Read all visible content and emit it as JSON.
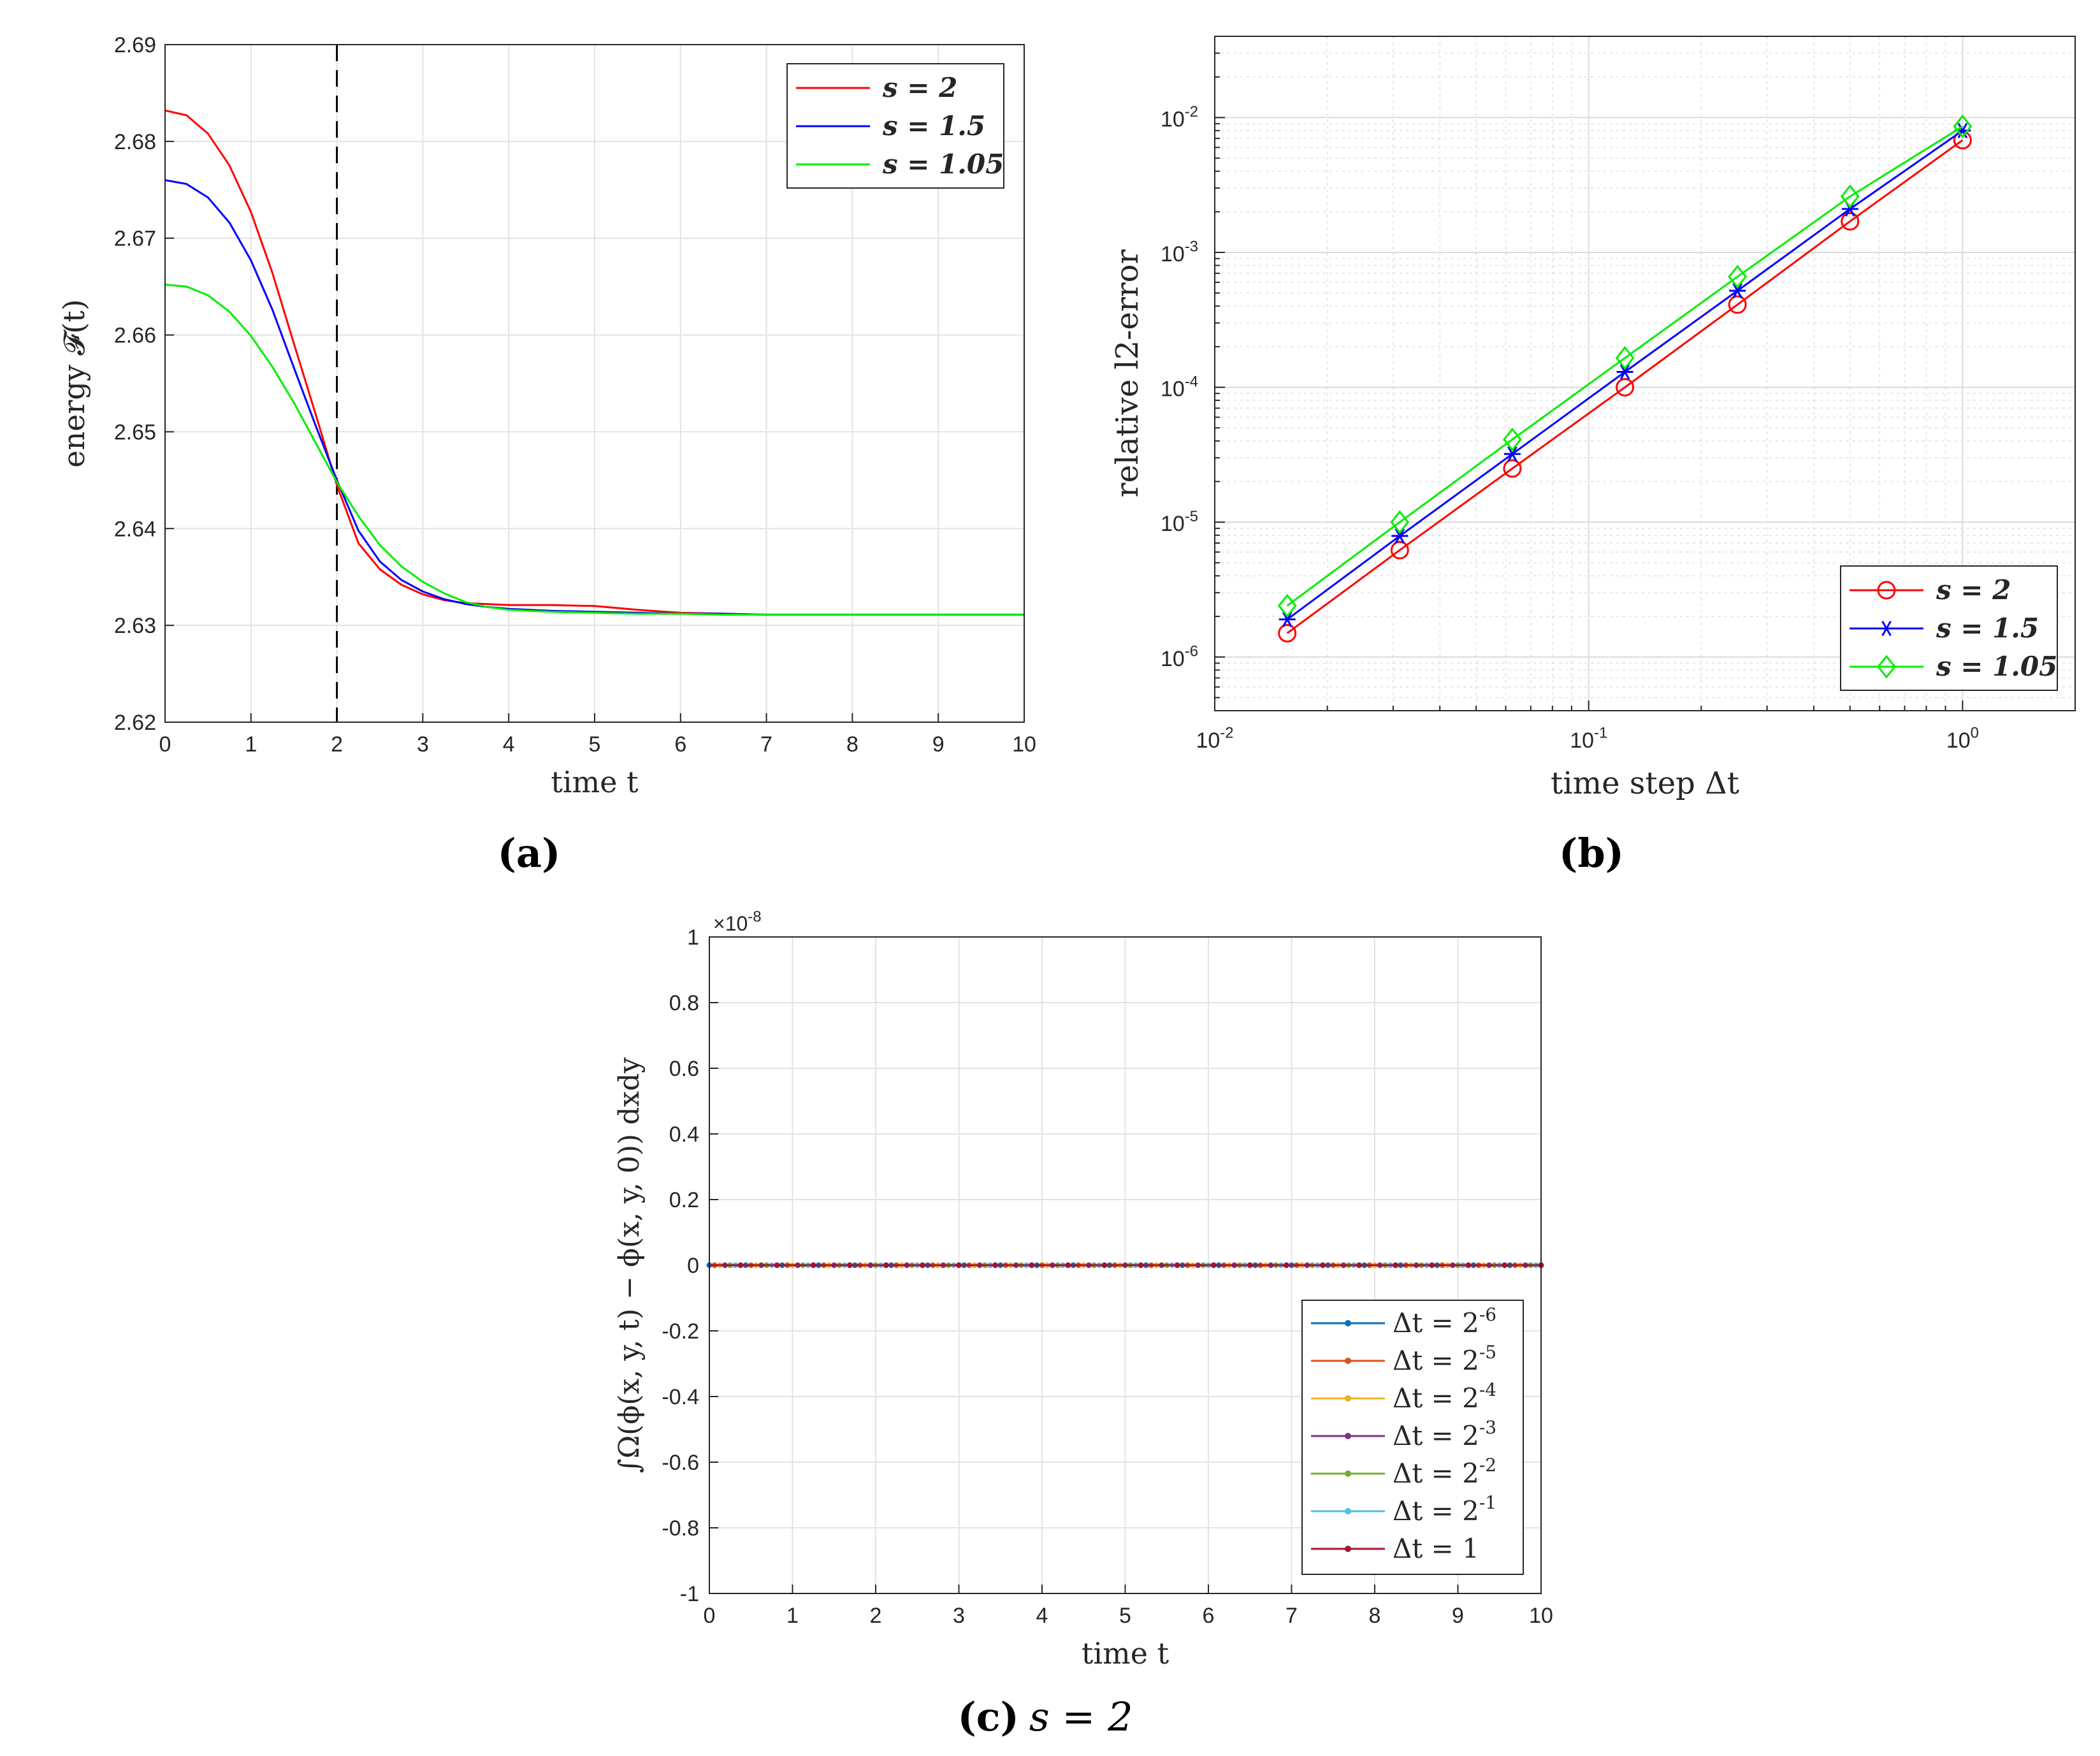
{
  "colors": {
    "red": "#ff0000",
    "blue": "#0000ff",
    "green": "#00ee00",
    "c_m6": "#0072bd",
    "c_m5": "#d95319",
    "c_m4": "#edb120",
    "c_m3": "#7e2f8e",
    "c_m2": "#77ac30",
    "c_m1": "#4dbeee",
    "c_0": "#a2142f"
  },
  "chart_data": [
    {
      "id": "a",
      "type": "line",
      "caption": "(a)",
      "xlabel": "time t",
      "ylabel": "energy 𝓕(t)",
      "xlim": [
        0,
        10
      ],
      "ylim": [
        2.62,
        2.69
      ],
      "xticks": [
        "0",
        "1",
        "2",
        "3",
        "4",
        "5",
        "6",
        "7",
        "8",
        "9",
        "10"
      ],
      "yticks": [
        "2.62",
        "2.63",
        "2.64",
        "2.65",
        "2.66",
        "2.67",
        "2.68",
        "2.69"
      ],
      "grid": true,
      "vline_x": 2,
      "legend_position": "top-right",
      "series": [
        {
          "name": "s = 2",
          "color": "red",
          "x": [
            0,
            0.25,
            0.5,
            0.75,
            1,
            1.25,
            1.5,
            1.75,
            2,
            2.25,
            2.5,
            2.75,
            3,
            3.25,
            3.5,
            3.75,
            4,
            4.5,
            5,
            5.5,
            6,
            6.5,
            7,
            8,
            9,
            10
          ],
          "y": [
            2.6832,
            2.6827,
            2.6808,
            2.6775,
            2.6727,
            2.6664,
            2.6591,
            2.6519,
            2.6445,
            2.6385,
            2.6358,
            2.6342,
            2.6332,
            2.6326,
            2.6323,
            2.6322,
            2.6321,
            2.6321,
            2.632,
            2.6316,
            2.6313,
            2.6312,
            2.6311,
            2.6311,
            2.6311,
            2.6311
          ]
        },
        {
          "name": "s = 1.5",
          "color": "blue",
          "x": [
            0,
            0.25,
            0.5,
            0.75,
            1,
            1.25,
            1.5,
            1.75,
            2,
            2.25,
            2.5,
            2.75,
            3,
            3.25,
            3.5,
            3.75,
            4,
            4.5,
            5,
            5.5,
            6,
            6.5,
            7,
            8,
            9,
            10
          ],
          "y": [
            2.676,
            2.6756,
            2.6742,
            2.6716,
            2.6677,
            2.6626,
            2.6566,
            2.6507,
            2.645,
            2.6398,
            2.6366,
            2.6347,
            2.6335,
            2.6327,
            2.6322,
            2.6319,
            2.6317,
            2.6315,
            2.6314,
            2.6313,
            2.6312,
            2.6312,
            2.6311,
            2.6311,
            2.6311,
            2.6311
          ]
        },
        {
          "name": "s = 1.05",
          "color": "green",
          "x": [
            0,
            0.25,
            0.5,
            0.75,
            1,
            1.25,
            1.5,
            1.75,
            2,
            2.25,
            2.5,
            2.75,
            3,
            3.25,
            3.5,
            3.75,
            4,
            4.5,
            5,
            5.5,
            6,
            6.5,
            7,
            8,
            9,
            10
          ],
          "y": [
            2.6652,
            2.665,
            2.6641,
            2.6624,
            2.6599,
            2.6567,
            2.653,
            2.6489,
            2.6448,
            2.6413,
            2.6383,
            2.6361,
            2.6345,
            2.6333,
            2.6324,
            2.6319,
            2.6316,
            2.6314,
            2.6313,
            2.6312,
            2.6312,
            2.6311,
            2.6311,
            2.6311,
            2.6311,
            2.6311
          ]
        }
      ]
    },
    {
      "id": "b",
      "type": "line",
      "caption": "(b)",
      "xlabel": "time step Δt",
      "ylabel": "relative l2-error",
      "xscale": "log",
      "yscale": "log",
      "xlim": [
        0.01,
        2
      ],
      "ylim": [
        4e-07,
        0.04
      ],
      "xticks": [
        {
          "m": "10",
          "e": "-2"
        },
        {
          "m": "10",
          "e": "-1"
        },
        {
          "m": "10",
          "e": "0"
        }
      ],
      "yticks": [
        {
          "m": "10",
          "e": "-6"
        },
        {
          "m": "10",
          "e": "-5"
        },
        {
          "m": "10",
          "e": "-4"
        },
        {
          "m": "10",
          "e": "-3"
        },
        {
          "m": "10",
          "e": "-2"
        }
      ],
      "grid": true,
      "legend_position": "bottom-right",
      "series": [
        {
          "name": "s = 2",
          "color": "red",
          "marker": "circle",
          "x": [
            0.015625,
            0.03125,
            0.0625,
            0.125,
            0.25,
            0.5,
            1
          ],
          "y": [
            1.5e-06,
            6.2e-06,
            2.5e-05,
            0.0001,
            0.00041,
            0.0017,
            0.0068
          ]
        },
        {
          "name": "s = 1.5",
          "color": "blue",
          "marker": "asterisk",
          "x": [
            0.015625,
            0.03125,
            0.0625,
            0.125,
            0.25,
            0.5,
            1
          ],
          "y": [
            1.9e-06,
            7.9e-06,
            3.2e-05,
            0.00013,
            0.00052,
            0.0021,
            0.008
          ]
        },
        {
          "name": "s = 1.05",
          "color": "green",
          "marker": "diamond",
          "x": [
            0.015625,
            0.03125,
            0.0625,
            0.125,
            0.25,
            0.5,
            1
          ],
          "y": [
            2.4e-06,
            1e-05,
            4.1e-05,
            0.000165,
            0.00066,
            0.0026,
            0.0086
          ]
        }
      ]
    },
    {
      "id": "c",
      "type": "line",
      "caption_letter": "(c)",
      "caption_rest": "s = 2",
      "xlabel": "time t",
      "ylabel": "∫Ω(ϕ(x, y, t) − ϕ(x, y, 0)) dxdy",
      "xlim": [
        0,
        10
      ],
      "ylim": [
        -1,
        1
      ],
      "y_exponent_label": "×10",
      "y_exponent": "-8",
      "xticks": [
        "0",
        "1",
        "2",
        "3",
        "4",
        "5",
        "6",
        "7",
        "8",
        "9",
        "10"
      ],
      "yticks": [
        "-1",
        "-0.8",
        "-0.6",
        "-0.4",
        "-0.2",
        "0",
        "0.2",
        "0.4",
        "0.6",
        "0.8",
        "1"
      ],
      "grid": true,
      "legend_position": "bottom-right",
      "series": [
        {
          "name": "Δt = 2",
          "exp": "-6",
          "color": "c_m6",
          "x": [
            0,
            10
          ],
          "y": [
            0,
            0
          ]
        },
        {
          "name": "Δt = 2",
          "exp": "-5",
          "color": "c_m5",
          "x": [
            0,
            10
          ],
          "y": [
            0,
            0
          ]
        },
        {
          "name": "Δt = 2",
          "exp": "-4",
          "color": "c_m4",
          "x": [
            0,
            10
          ],
          "y": [
            0,
            0
          ]
        },
        {
          "name": "Δt = 2",
          "exp": "-3",
          "color": "c_m3",
          "x": [
            0,
            10
          ],
          "y": [
            0,
            0
          ]
        },
        {
          "name": "Δt = 2",
          "exp": "-2",
          "color": "c_m2",
          "x": [
            0,
            10
          ],
          "y": [
            0,
            0
          ]
        },
        {
          "name": "Δt = 2",
          "exp": "-1",
          "color": "c_m1",
          "x": [
            0,
            10
          ],
          "y": [
            0,
            0
          ]
        },
        {
          "name": "Δt = 1",
          "exp": "",
          "color": "c_0",
          "x": [
            0,
            10
          ],
          "y": [
            0,
            0
          ]
        }
      ]
    }
  ]
}
